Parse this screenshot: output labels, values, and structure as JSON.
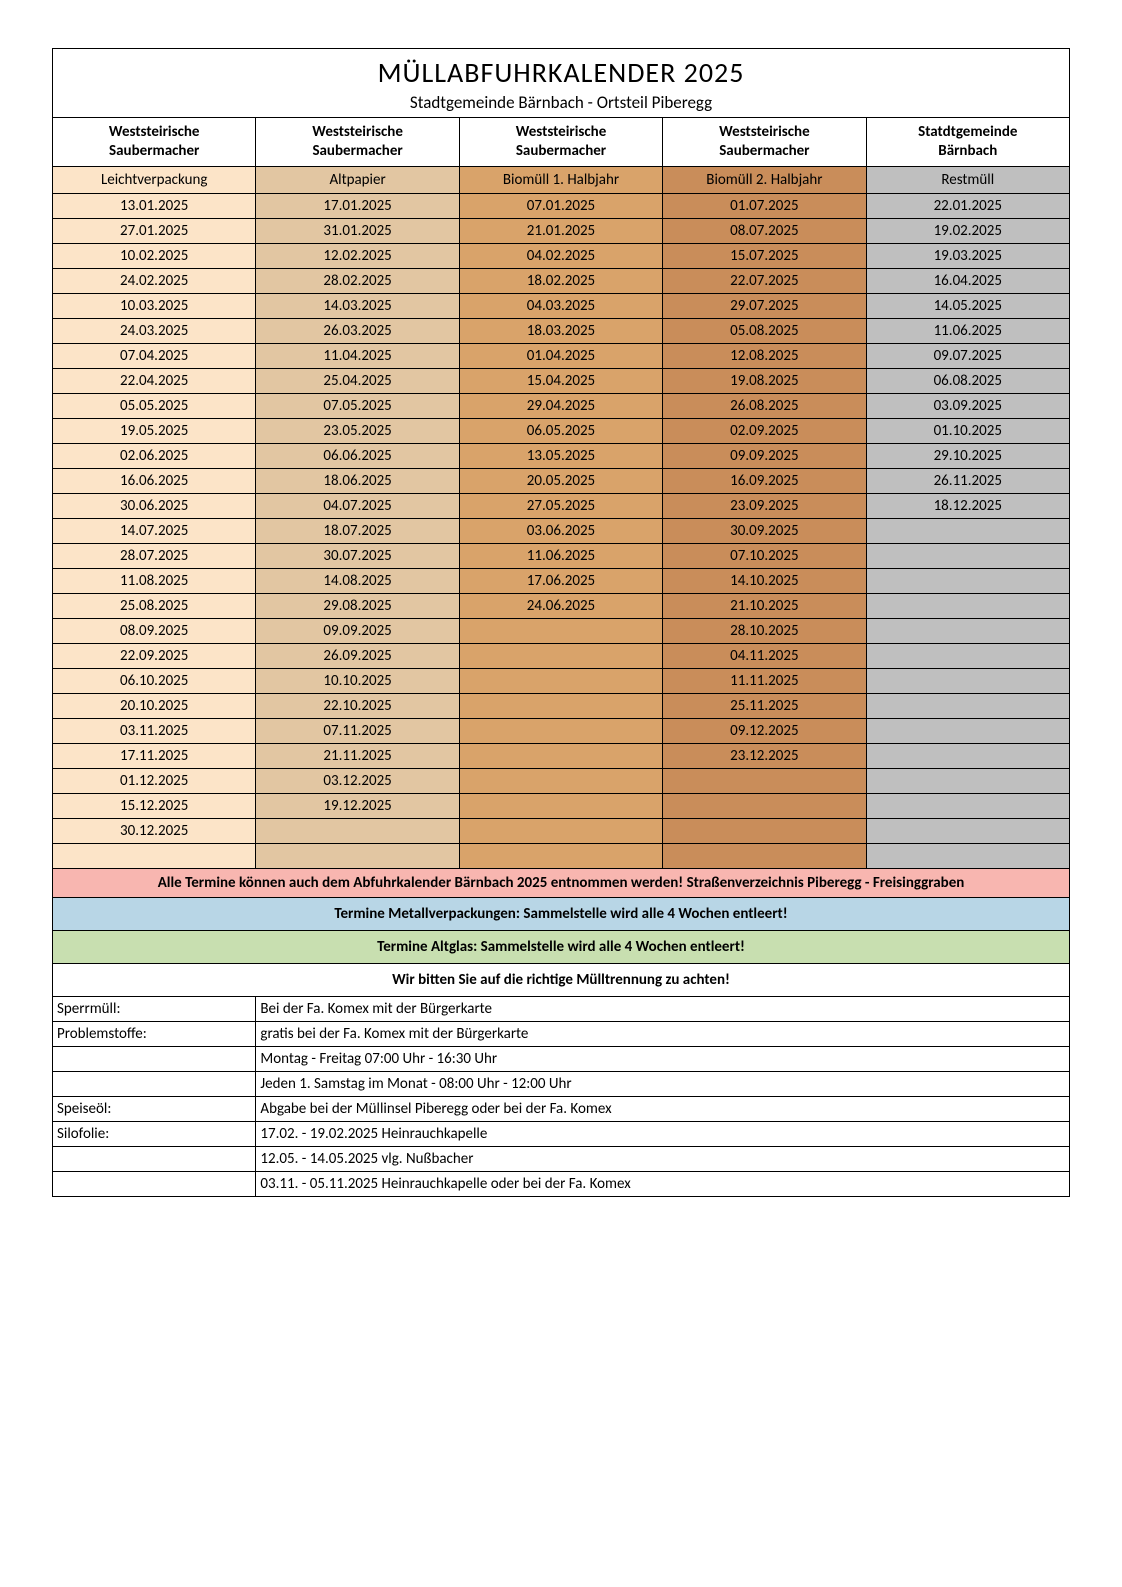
{
  "title": "MÜLLABFUHRKALENDER 2025",
  "subtitle": "Stadtgemeinde Bärnbach - Ortsteil Piberegg",
  "colors": {
    "col0": "#fce4c8",
    "col1": "#e2c6a2",
    "col2": "#d9a36a",
    "col3": "#c98d5a",
    "col4": "#bfbfbf",
    "note_pink": "#f8b6b0",
    "note_blue": "#b8d6e6",
    "note_green": "#c8dfb0",
    "note_white": "#ffffff",
    "border": "#000000",
    "text": "#000000"
  },
  "providers": [
    "Weststeirische Saubermacher",
    "Weststeirische Saubermacher",
    "Weststeirische Saubermacher",
    "Weststeirische Saubermacher",
    "Statdtgemeinde Bärnbach"
  ],
  "categories": [
    "Leichtverpackung",
    "Altpapier",
    "Biomüll 1. Halbjahr",
    "Biomüll 2. Halbjahr",
    "Restmüll"
  ],
  "columns": [
    [
      "13.01.2025",
      "27.01.2025",
      "10.02.2025",
      "24.02.2025",
      "10.03.2025",
      "24.03.2025",
      "07.04.2025",
      "22.04.2025",
      "05.05.2025",
      "19.05.2025",
      "02.06.2025",
      "16.06.2025",
      "30.06.2025",
      "14.07.2025",
      "28.07.2025",
      "11.08.2025",
      "25.08.2025",
      "08.09.2025",
      "22.09.2025",
      "06.10.2025",
      "20.10.2025",
      "03.11.2025",
      "17.11.2025",
      "01.12.2025",
      "15.12.2025",
      "30.12.2025",
      ""
    ],
    [
      "17.01.2025",
      "31.01.2025",
      "12.02.2025",
      "28.02.2025",
      "14.03.2025",
      "26.03.2025",
      "11.04.2025",
      "25.04.2025",
      "07.05.2025",
      "23.05.2025",
      "06.06.2025",
      "18.06.2025",
      "04.07.2025",
      "18.07.2025",
      "30.07.2025",
      "14.08.2025",
      "29.08.2025",
      "09.09.2025",
      "26.09.2025",
      "10.10.2025",
      "22.10.2025",
      "07.11.2025",
      "21.11.2025",
      "03.12.2025",
      "19.12.2025",
      "",
      ""
    ],
    [
      "07.01.2025",
      "21.01.2025",
      "04.02.2025",
      "18.02.2025",
      "04.03.2025",
      "18.03.2025",
      "01.04.2025",
      "15.04.2025",
      "29.04.2025",
      "06.05.2025",
      "13.05.2025",
      "20.05.2025",
      "27.05.2025",
      "03.06.2025",
      "11.06.2025",
      "17.06.2025",
      "24.06.2025",
      "",
      "",
      "",
      "",
      "",
      "",
      "",
      "",
      "",
      ""
    ],
    [
      "01.07.2025",
      "08.07.2025",
      "15.07.2025",
      "22.07.2025",
      "29.07.2025",
      "05.08.2025",
      "12.08.2025",
      "19.08.2025",
      "26.08.2025",
      "02.09.2025",
      "09.09.2025",
      "16.09.2025",
      "23.09.2025",
      "30.09.2025",
      "07.10.2025",
      "14.10.2025",
      "21.10.2025",
      "28.10.2025",
      "04.11.2025",
      "11.11.2025",
      "25.11.2025",
      "09.12.2025",
      "23.12.2025",
      "",
      "",
      "",
      ""
    ],
    [
      "22.01.2025",
      "19.02.2025",
      "19.03.2025",
      "16.04.2025",
      "14.05.2025",
      "11.06.2025",
      "09.07.2025",
      "06.08.2025",
      "03.09.2025",
      "01.10.2025",
      "29.10.2025",
      "26.11.2025",
      "18.12.2025",
      "",
      "",
      "",
      "",
      "",
      "",
      "",
      "",
      "",
      "",
      "",
      "",
      "",
      ""
    ]
  ],
  "rowCount": 27,
  "notes": [
    {
      "text": "Alle Termine können auch dem Abfuhrkalender Bärnbach 2025 entnommen werden! Straßenverzeichnis Piberegg - Freisinggraben",
      "bg": "note_pink"
    },
    {
      "text": "Termine Metallverpackungen: Sammelstelle wird alle 4 Wochen entleert!",
      "bg": "note_blue"
    },
    {
      "text": "Termine Altglas: Sammelstelle wird alle 4 Wochen entleert!",
      "bg": "note_green"
    },
    {
      "text": "Wir bitten Sie auf die richtige Mülltrennung zu achten!",
      "bg": "note_white"
    }
  ],
  "info": [
    {
      "label": "Sperrmüll:",
      "value": "Bei der Fa. Komex mit der Bürgerkarte"
    },
    {
      "label": "Problemstoffe:",
      "value": "gratis bei der Fa. Komex mit der Bürgerkarte"
    },
    {
      "label": "",
      "value": "Montag - Freitag 07:00 Uhr - 16:30 Uhr"
    },
    {
      "label": "",
      "value": "Jeden 1. Samstag im Monat - 08:00 Uhr - 12:00 Uhr"
    },
    {
      "label": "Speiseöl:",
      "value": "Abgabe bei der Müllinsel Piberegg oder bei der Fa. Komex"
    },
    {
      "label": "Silofolie:",
      "value": "17.02. - 19.02.2025 Heinrauchkapelle"
    },
    {
      "label": "",
      "value": "12.05. - 14.05.2025 vlg. Nußbacher"
    },
    {
      "label": "",
      "value": "03.11. - 05.11.2025 Heinrauchkapelle oder bei der Fa. Komex"
    }
  ]
}
